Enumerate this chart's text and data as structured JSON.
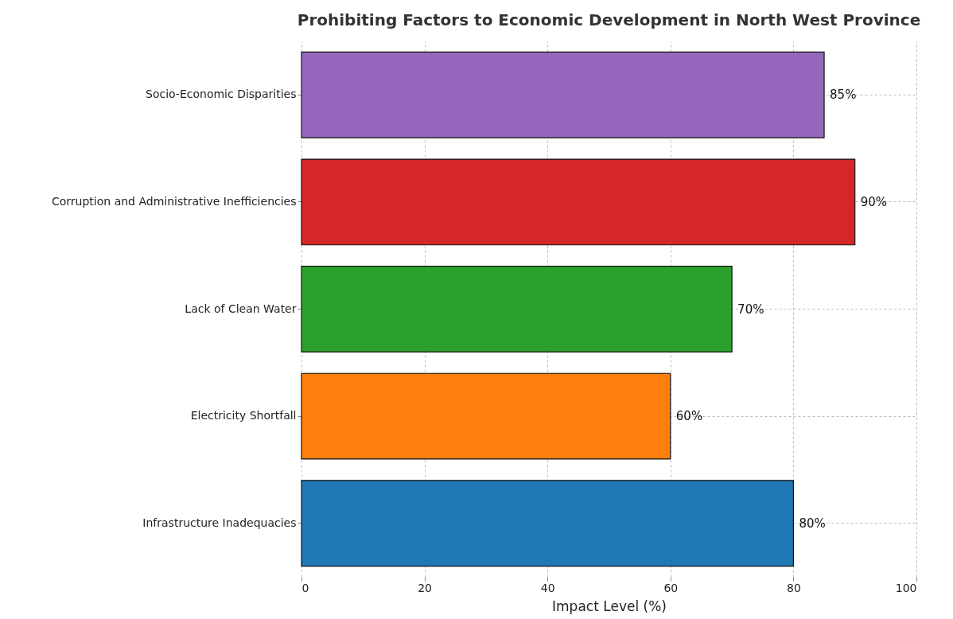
{
  "chart_data": {
    "type": "bar",
    "orientation": "horizontal",
    "title": "Prohibiting Factors to Economic Development in North West Province",
    "xlabel": "Impact Level (%)",
    "categories": [
      "Socio-Economic Disparities",
      "Corruption and Administrative Inefficiencies",
      "Lack of Clean Water",
      "Electricity Shortfall",
      "Infrastructure Inadequacies"
    ],
    "values": [
      85,
      90,
      70,
      60,
      80
    ],
    "colors": [
      "#9467bd",
      "#d62728",
      "#2ca02c",
      "#ff7f0e",
      "#1f77b4"
    ],
    "value_labels": [
      "85%",
      "90%",
      "70%",
      "60%",
      "80%"
    ],
    "xlim": [
      0,
      100
    ],
    "xticks": [
      0,
      20,
      40,
      60,
      80,
      100
    ],
    "grid": true
  }
}
